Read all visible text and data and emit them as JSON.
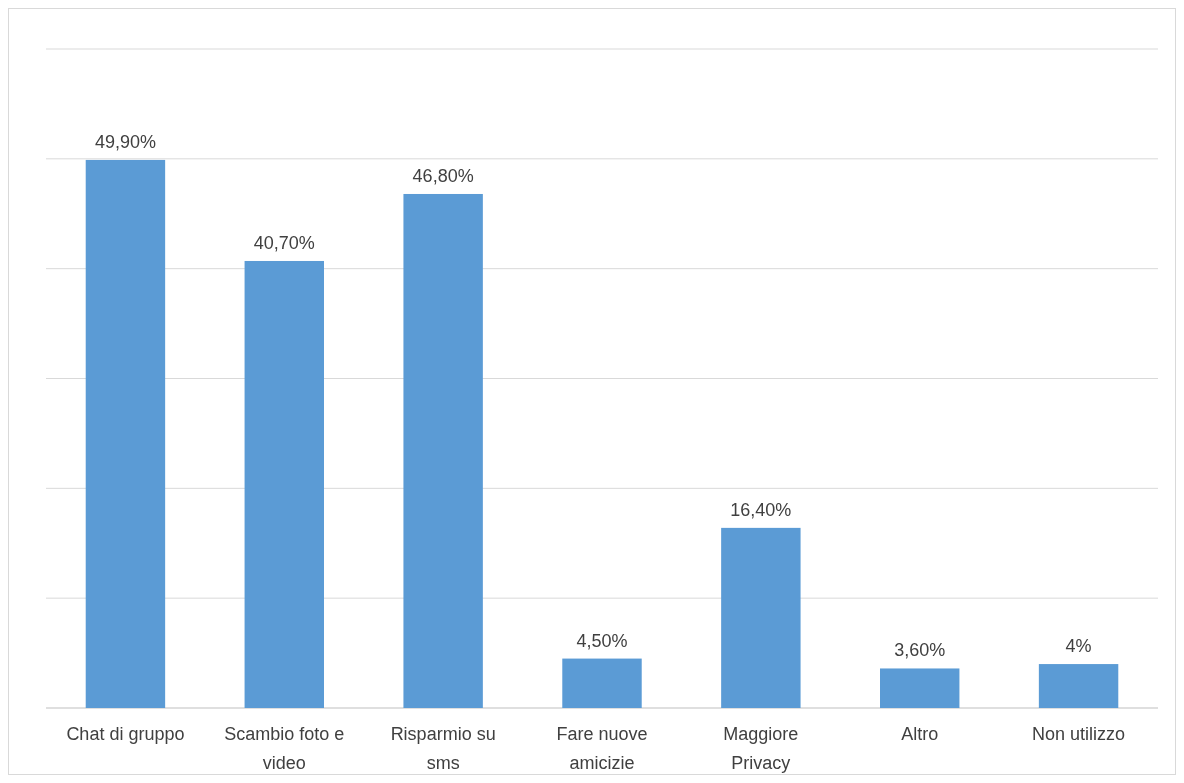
{
  "chart_data": {
    "type": "bar",
    "categories": [
      "Chat di gruppo",
      "Scambio foto e video",
      "Risparmio su sms",
      "Fare nuove amicizie",
      "Maggiore Privacy",
      "Altro",
      "Non utilizzo"
    ],
    "values": [
      49.9,
      40.7,
      46.8,
      4.5,
      16.4,
      3.6,
      4
    ],
    "value_labels": [
      "49,90%",
      "40,70%",
      "46,80%",
      "4,50%",
      "16,40%",
      "3,60%",
      "4%"
    ],
    "color": "#5b9bd5",
    "ylim": [
      0,
      60
    ],
    "yticks": [
      {
        "value": 0,
        "label": null
      },
      {
        "value": 10,
        "label": null
      },
      {
        "value": 20,
        "label": null
      },
      {
        "value": 30,
        "label": null
      },
      {
        "value": 40,
        "label": null
      },
      {
        "value": 50,
        "label": null
      },
      {
        "value": 60,
        "label": null
      }
    ],
    "tick_labels": "x",
    "grid": "y"
  }
}
